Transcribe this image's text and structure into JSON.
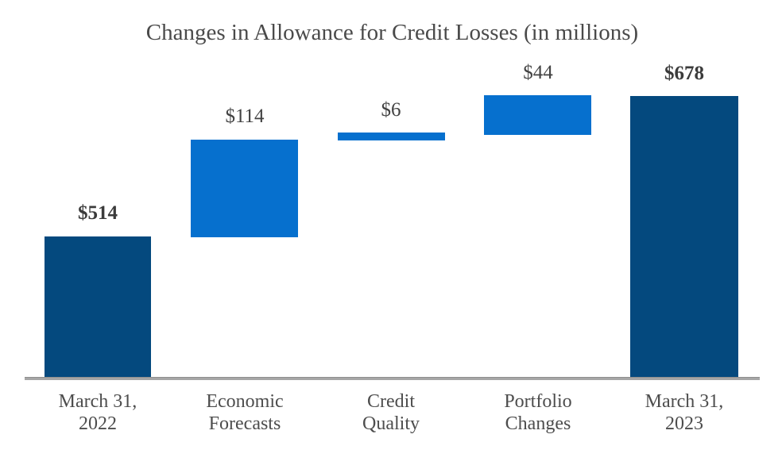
{
  "chart_data": {
    "type": "waterfall-bar",
    "title": "Changes in Allowance for Credit Losses (in millions)",
    "xlabel": "",
    "ylabel": "",
    "unit": "USD millions",
    "grid": false,
    "legend": false,
    "axis_ticks_visible": false,
    "baseline_axis": "horizontal gray line at y=0",
    "categories": [
      "March 31, 2022",
      "Economic Forecasts",
      "Credit Quality",
      "Portfolio Changes",
      "March 31, 2023"
    ],
    "values": [
      514,
      114,
      6,
      44,
      678
    ],
    "cumulative": [
      514,
      628,
      634,
      678,
      678
    ],
    "colors": {
      "total_bar": "#04497e",
      "step_bar": "#0670ce",
      "axis_line": "#a6a6a6",
      "text": "#424242",
      "background": "#ffffff"
    },
    "bars": [
      {
        "category_line1": "March 31,",
        "category_line2": "2022",
        "value": 514,
        "value_label": "$514",
        "role": "total-start",
        "label_bold": true
      },
      {
        "category_line1": "Economic",
        "category_line2": "Forecasts",
        "value": 114,
        "value_label": "$114",
        "role": "increase",
        "label_bold": false
      },
      {
        "category_line1": "Credit",
        "category_line2": "Quality",
        "value": 6,
        "value_label": "$6",
        "role": "increase",
        "label_bold": false
      },
      {
        "category_line1": "Portfolio",
        "category_line2": "Changes",
        "value": 44,
        "value_label": "$44",
        "role": "increase",
        "label_bold": false
      },
      {
        "category_line1": "March 31,",
        "category_line2": "2023",
        "value": 678,
        "value_label": "$678",
        "role": "total-end",
        "label_bold": true
      }
    ]
  }
}
